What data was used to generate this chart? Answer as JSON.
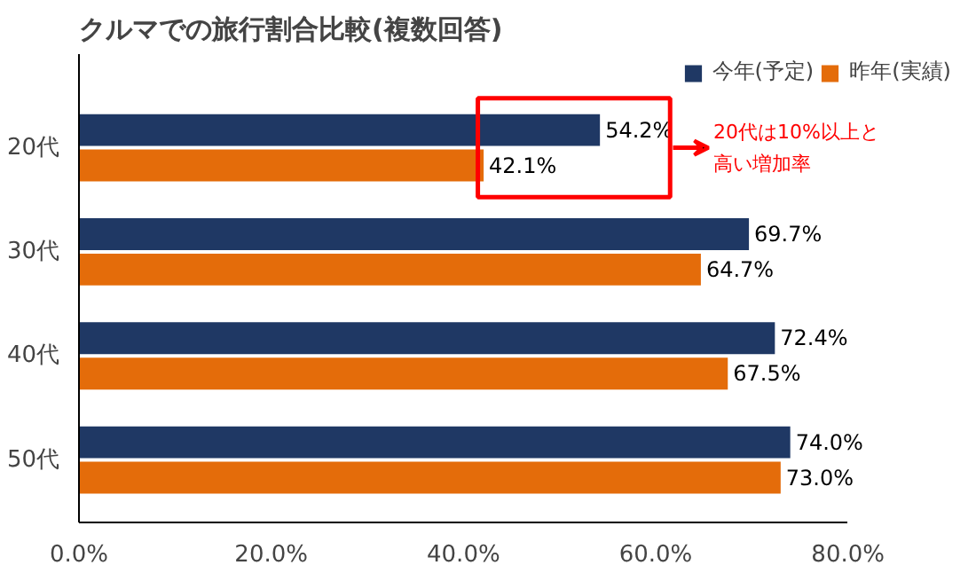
{
  "chart_data": {
    "type": "bar",
    "orientation": "horizontal",
    "title": "クルマでの旅行割合比較(複数回答)",
    "categories": [
      "20代",
      "30代",
      "40代",
      "50代"
    ],
    "series": [
      {
        "name": "今年(予定)",
        "color": "#1f3864",
        "values": [
          54.2,
          69.7,
          72.4,
          74.0
        ],
        "value_labels": [
          "54.2%",
          "69.7%",
          "72.4%",
          "74.0%"
        ]
      },
      {
        "name": "昨年(実績)",
        "color": "#e46c0a",
        "values": [
          42.1,
          64.7,
          67.5,
          73.0
        ],
        "value_labels": [
          "42.1%",
          "64.7%",
          "67.5%",
          "73.0%"
        ]
      }
    ],
    "xlim": [
      0,
      80
    ],
    "xticks": [
      {
        "value": 0,
        "label": "0.0%"
      },
      {
        "value": 20,
        "label": "20.0%"
      },
      {
        "value": 40,
        "label": "40.0%"
      },
      {
        "value": 60,
        "label": "60.0%"
      },
      {
        "value": 80,
        "label": "80.0%"
      }
    ],
    "annotations": [
      "20代は10%以上と",
      "高い増加率"
    ],
    "legend": "top right",
    "grid": false
  }
}
